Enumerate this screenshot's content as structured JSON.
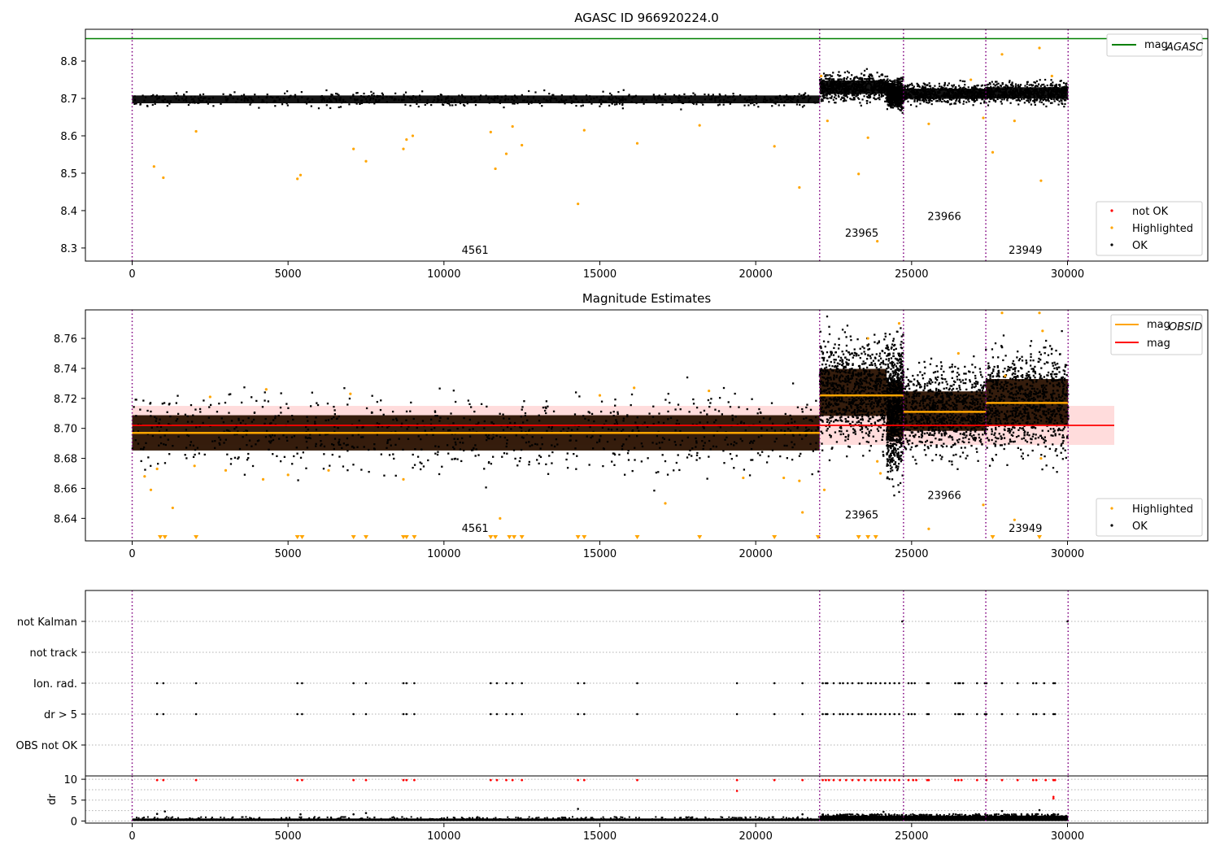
{
  "chart_data": [
    {
      "type": "scatter",
      "title": "AGASC ID 966920224.0",
      "xlim": [
        -1500,
        34500
      ],
      "ylim": [
        8.265,
        8.885
      ],
      "xticks": [
        0,
        5000,
        10000,
        15000,
        20000,
        25000,
        30000
      ],
      "yticks": [
        8.3,
        8.4,
        8.5,
        8.6,
        8.7,
        8.8
      ],
      "mag_agasc": 8.86,
      "legend_top": {
        "position": "top-right",
        "entries": [
          {
            "label": "mag",
            "sub": "AGASC",
            "color": "#008000"
          }
        ]
      },
      "legend_bottom": {
        "position": "bottom-right",
        "entries": [
          {
            "label": "not OK",
            "color": "#ff0000"
          },
          {
            "label": "Highlighted",
            "color": "#ffa500"
          },
          {
            "label": "OK",
            "color": "#000000"
          }
        ]
      },
      "obsid_labels": [
        {
          "text": "4561",
          "x": 11000,
          "y": 8.285
        },
        {
          "text": "23965",
          "x": 23400,
          "y": 8.33
        },
        {
          "text": "23966",
          "x": 26050,
          "y": 8.375
        },
        {
          "text": "23949",
          "x": 28650,
          "y": 8.285
        }
      ],
      "obsid_boundaries": [
        0,
        22050,
        24740,
        27380,
        30020
      ],
      "ok_bands": [
        {
          "x0": 0,
          "x1": 22050,
          "y0": 8.68,
          "y1": 8.715
        },
        {
          "x0": 22050,
          "x1": 24200,
          "y0": 8.7,
          "y1": 8.76
        },
        {
          "x0": 24200,
          "x1": 24740,
          "y0": 8.68,
          "y1": 8.745
        },
        {
          "x0": 24740,
          "x1": 27380,
          "y0": 8.69,
          "y1": 8.735
        },
        {
          "x0": 27380,
          "x1": 30020,
          "y0": 8.69,
          "y1": 8.74
        }
      ],
      "highlighted_points": [
        [
          700,
          8.518
        ],
        [
          1000,
          8.488
        ],
        [
          2050,
          8.612
        ],
        [
          5300,
          8.485
        ],
        [
          5400,
          8.495
        ],
        [
          7100,
          8.565
        ],
        [
          7500,
          8.532
        ],
        [
          8700,
          8.565
        ],
        [
          8800,
          8.59
        ],
        [
          9000,
          8.6
        ],
        [
          11500,
          8.61
        ],
        [
          11650,
          8.512
        ],
        [
          12000,
          8.552
        ],
        [
          12200,
          8.625
        ],
        [
          12500,
          8.575
        ],
        [
          14300,
          8.418
        ],
        [
          14500,
          8.615
        ],
        [
          16200,
          8.58
        ],
        [
          18200,
          8.628
        ],
        [
          20600,
          8.572
        ],
        [
          21400,
          8.462
        ],
        [
          22300,
          8.64
        ],
        [
          23300,
          8.498
        ],
        [
          23600,
          8.595
        ],
        [
          23900,
          8.318
        ],
        [
          25550,
          8.632
        ],
        [
          27300,
          8.648
        ],
        [
          27600,
          8.556
        ],
        [
          27900,
          8.818
        ],
        [
          28300,
          8.64
        ],
        [
          29100,
          8.835
        ],
        [
          29150,
          8.48
        ],
        [
          22100,
          8.76
        ],
        [
          26900,
          8.75
        ],
        [
          29500,
          8.76
        ]
      ]
    },
    {
      "type": "scatter",
      "title": "Magnitude Estimates",
      "xlim": [
        -1500,
        34500
      ],
      "ylim": [
        8.625,
        8.779
      ],
      "xticks": [
        0,
        5000,
        10000,
        15000,
        20000,
        25000,
        30000
      ],
      "yticks": [
        8.64,
        8.66,
        8.68,
        8.7,
        8.72,
        8.74,
        8.76
      ],
      "mag": 8.702,
      "mag_band": [
        8.689,
        8.715
      ],
      "mag_line_xrange": [
        0,
        31500
      ],
      "mag_obsid_segments": [
        {
          "x0": 0,
          "x1": 22050,
          "y": 8.697
        },
        {
          "x0": 22050,
          "x1": 24740,
          "y": 8.722
        },
        {
          "x0": 24740,
          "x1": 27380,
          "y": 8.711
        },
        {
          "x0": 27380,
          "x1": 30020,
          "y": 8.717
        }
      ],
      "legend_top": {
        "position": "top-right",
        "entries": [
          {
            "label": "mag",
            "sub": "OBSID",
            "color": "#ffa500"
          },
          {
            "label": "mag",
            "color": "#ff0000"
          }
        ]
      },
      "legend_bottom": {
        "position": "bottom-right",
        "entries": [
          {
            "label": "Highlighted",
            "color": "#ffa500"
          },
          {
            "label": "OK",
            "color": "#000000"
          }
        ]
      },
      "obsid_labels": [
        {
          "text": "4561",
          "x": 11000,
          "y": 8.631
        },
        {
          "text": "23965",
          "x": 23400,
          "y": 8.64
        },
        {
          "text": "23966",
          "x": 26050,
          "y": 8.653
        },
        {
          "text": "23949",
          "x": 28650,
          "y": 8.631
        }
      ],
      "ok_bands": [
        {
          "x0": 0,
          "x1": 22050,
          "y0": 8.676,
          "y1": 8.718
        },
        {
          "x0": 22050,
          "x1": 24200,
          "y0": 8.696,
          "y1": 8.752
        },
        {
          "x0": 24200,
          "x1": 24740,
          "y0": 8.68,
          "y1": 8.745
        },
        {
          "x0": 24740,
          "x1": 27380,
          "y0": 8.688,
          "y1": 8.735
        },
        {
          "x0": 27380,
          "x1": 30020,
          "y0": 8.69,
          "y1": 8.745
        }
      ],
      "low_markers_x": [
        900,
        1050,
        2050,
        5300,
        5450,
        7100,
        7500,
        8700,
        8800,
        9050,
        11500,
        11650,
        12100,
        12250,
        12500,
        14300,
        14500,
        16200,
        18200,
        20600,
        22000,
        23300,
        23600,
        23850,
        27600,
        29100
      ],
      "highlighted_points": [
        [
          400,
          8.668
        ],
        [
          600,
          8.659
        ],
        [
          800,
          8.673
        ],
        [
          1300,
          8.647
        ],
        [
          2000,
          8.675
        ],
        [
          3000,
          8.672
        ],
        [
          4200,
          8.666
        ],
        [
          5000,
          8.669
        ],
        [
          6300,
          8.672
        ],
        [
          8700,
          8.666
        ],
        [
          11800,
          8.64
        ],
        [
          17100,
          8.65
        ],
        [
          19600,
          8.667
        ],
        [
          21500,
          8.644
        ],
        [
          22200,
          8.659
        ],
        [
          23600,
          8.76
        ],
        [
          24600,
          8.77
        ],
        [
          25550,
          8.633
        ],
        [
          27300,
          8.649
        ],
        [
          27900,
          8.777
        ],
        [
          28300,
          8.639
        ],
        [
          29100,
          8.777
        ],
        [
          29200,
          8.765
        ],
        [
          29150,
          8.68
        ],
        [
          21400,
          8.665
        ],
        [
          20900,
          8.667
        ],
        [
          4300,
          8.726
        ],
        [
          2500,
          8.721
        ],
        [
          7000,
          8.723
        ],
        [
          15000,
          8.722
        ],
        [
          16100,
          8.727
        ],
        [
          18500,
          8.725
        ],
        [
          23900,
          8.678
        ],
        [
          24000,
          8.67
        ],
        [
          26500,
          8.75
        ],
        [
          28000,
          8.735
        ]
      ]
    },
    {
      "type": "scatter",
      "xlim": [
        -1500,
        34500
      ],
      "xticks": [
        0,
        5000,
        10000,
        15000,
        20000,
        25000,
        30000
      ],
      "flag_categories": [
        "not Kalman",
        "not track",
        "Ion. rad.",
        "dr > 5",
        "OBS not OK"
      ],
      "flag_points_x": [
        800,
        1000,
        2050,
        5300,
        5450,
        7100,
        7500,
        8700,
        8800,
        9050,
        11500,
        11700,
        12000,
        12200,
        12500,
        14300,
        14500,
        16200,
        19400,
        20600,
        21500,
        22150,
        22250,
        22300,
        22500,
        22700,
        22800,
        22950,
        23100,
        23300,
        23400,
        23600,
        23700,
        23850,
        24000,
        24150,
        24300,
        24450,
        24600,
        24900,
        25000,
        25100,
        25500,
        25550,
        26400,
        26500,
        26550,
        26650,
        27100,
        27350,
        27400,
        27900,
        28400,
        28900,
        29000,
        29250,
        29550,
        29600
      ],
      "not_kalman_x": [
        24700,
        30000
      ],
      "dr_ylim": [
        -0.5,
        10.8
      ],
      "dr_yticks": [
        0,
        5,
        10
      ],
      "dr_ylabel": "dr",
      "dr_ok_bands": [
        {
          "x0": 0,
          "x1": 22050,
          "y0": 0,
          "y1": 0.6
        },
        {
          "x0": 22050,
          "x1": 30020,
          "y0": 0,
          "y1": 1.3
        }
      ],
      "dr_not_ok_x": [
        800,
        1000,
        2050,
        5300,
        5450,
        7100,
        7500,
        8700,
        8800,
        9050,
        11500,
        11700,
        12000,
        12200,
        12500,
        14300,
        14500,
        16200,
        19400,
        20600,
        21500,
        22150,
        22250,
        22350,
        22500,
        22700,
        22900,
        23100,
        23300,
        23500,
        23700,
        23850,
        24000,
        24150,
        24300,
        24450,
        24600,
        24900,
        25050,
        25150,
        25500,
        25550,
        26400,
        26500,
        26600,
        27100,
        27400,
        27900,
        28400,
        28900,
        29000,
        29300,
        29550,
        29600
      ],
      "dr_extra_points": [
        [
          19400,
          7.2
        ],
        [
          29550,
          5.8
        ],
        [
          29550,
          5.4
        ],
        [
          800,
          1.7
        ],
        [
          1050,
          2.3
        ],
        [
          5400,
          1.6
        ],
        [
          7100,
          1.6
        ],
        [
          7500,
          1.9
        ],
        [
          14300,
          2.9
        ],
        [
          21500,
          1.6
        ],
        [
          24100,
          2.2
        ],
        [
          27900,
          2.4
        ],
        [
          29100,
          2.6
        ]
      ]
    }
  ]
}
